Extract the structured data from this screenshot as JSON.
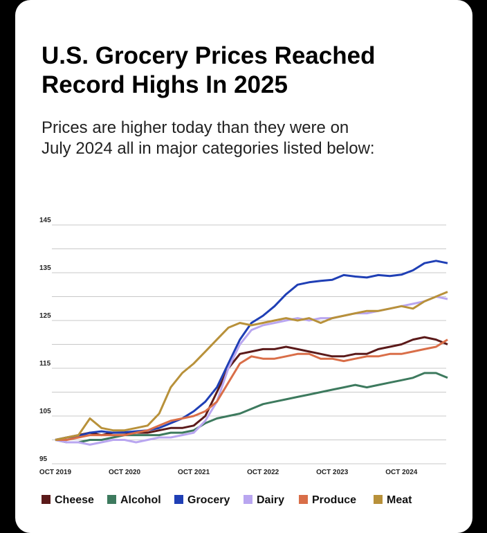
{
  "chart_data": {
    "type": "line",
    "title": "U.S. Grocery Prices Reached Record Highs In 2025",
    "title_lines": [
      "U.S. Grocery Prices Reached",
      "Record Highs In 2025"
    ],
    "subtitle_lines": [
      "Prices are higher today than they were on",
      "July 2024 all in major categories listed below:"
    ],
    "x": [
      "2019-10",
      "2019-12",
      "2020-02",
      "2020-04",
      "2020-06",
      "2020-08",
      "2020-10",
      "2020-12",
      "2021-02",
      "2021-04",
      "2021-06",
      "2021-08",
      "2021-10",
      "2021-12",
      "2022-02",
      "2022-04",
      "2022-06",
      "2022-08",
      "2022-10",
      "2022-12",
      "2023-02",
      "2023-04",
      "2023-06",
      "2023-08",
      "2023-10",
      "2023-12",
      "2024-02",
      "2024-04",
      "2024-06",
      "2024-08",
      "2024-10",
      "2024-12",
      "2025-02",
      "2025-04",
      "2025-06"
    ],
    "xlim": [
      "2019-10",
      "2025-06"
    ],
    "xticks": [
      {
        "value": "2019-10",
        "label": "OCT 2019"
      },
      {
        "value": "2020-10",
        "label": "OCT 2020"
      },
      {
        "value": "2021-10",
        "label": "OCT 2021"
      },
      {
        "value": "2022-10",
        "label": "OCT 2022"
      },
      {
        "value": "2023-10",
        "label": "OCT 2023"
      },
      {
        "value": "2024-10",
        "label": "OCT 2024"
      }
    ],
    "ylim": [
      95,
      145
    ],
    "yticks": [
      95,
      105,
      115,
      125,
      135,
      145
    ],
    "minor_gridlines": [
      100,
      110,
      120,
      130,
      140
    ],
    "grid": true,
    "legend": "bottom",
    "series": [
      {
        "name": "Cheese",
        "color": "#5b1a1a",
        "values": [
          100,
          100.5,
          101,
          101.5,
          101,
          101.5,
          101.5,
          101.5,
          101.5,
          102,
          102.5,
          102.5,
          103,
          105,
          110,
          115,
          118,
          118.5,
          119,
          119,
          119.5,
          119,
          118.5,
          118,
          117.5,
          117.5,
          118,
          118,
          119,
          119.5,
          120,
          121,
          121.5,
          121,
          120
        ]
      },
      {
        "name": "Alcohol",
        "color": "#3d7a5e",
        "values": [
          100,
          99.5,
          99.5,
          100,
          100,
          100.5,
          101,
          101,
          101,
          101,
          101.5,
          101.5,
          102,
          103.5,
          104.5,
          105,
          105.5,
          106.5,
          107.5,
          108,
          108.5,
          109,
          109.5,
          110,
          110.5,
          111,
          111.5,
          111,
          111.5,
          112,
          112.5,
          113,
          114,
          114,
          113
        ]
      },
      {
        "name": "Grocery",
        "color": "#1f3fb5",
        "values": [
          100,
          100.5,
          100.8,
          101.5,
          101.8,
          101.5,
          101.6,
          101.8,
          102,
          102.5,
          103.5,
          104.5,
          106,
          108,
          111,
          116,
          121,
          124.5,
          126,
          128,
          130.5,
          132.5,
          133,
          133.3,
          133.5,
          134.5,
          134.2,
          134,
          134.5,
          134.3,
          134.6,
          135.5,
          137,
          137.5,
          137
        ]
      },
      {
        "name": "Dairy",
        "color": "#b9a6f0",
        "values": [
          100,
          99.5,
          99.5,
          99,
          99.5,
          100,
          100,
          99.5,
          100,
          100.5,
          100.5,
          101,
          101.5,
          104,
          108,
          115,
          120,
          123,
          124,
          124.5,
          125,
          125.5,
          125,
          125.5,
          125.5,
          126,
          126.5,
          126.5,
          127,
          127.5,
          128,
          128.5,
          129,
          130,
          129.5
        ]
      },
      {
        "name": "Produce",
        "color": "#d96e48",
        "values": [
          100,
          100,
          100.5,
          101,
          101,
          101,
          101,
          101.5,
          102,
          103,
          104,
          104.5,
          105,
          106,
          108,
          112,
          116,
          117.5,
          117,
          117,
          117.5,
          118,
          118,
          117,
          117,
          116.5,
          117,
          117.5,
          117.5,
          118,
          118,
          118.5,
          119,
          119.5,
          121
        ]
      },
      {
        "name": "Meat",
        "color": "#b8913a",
        "values": [
          100,
          100.5,
          101,
          104.5,
          102.5,
          102,
          102,
          102.5,
          103,
          105.5,
          111,
          114,
          116,
          118.5,
          121,
          123.5,
          124.5,
          124,
          124.5,
          125,
          125.5,
          125,
          125.5,
          124.5,
          125.5,
          126,
          126.5,
          127,
          127,
          127.5,
          128,
          127.5,
          129,
          130,
          131
        ]
      }
    ]
  }
}
